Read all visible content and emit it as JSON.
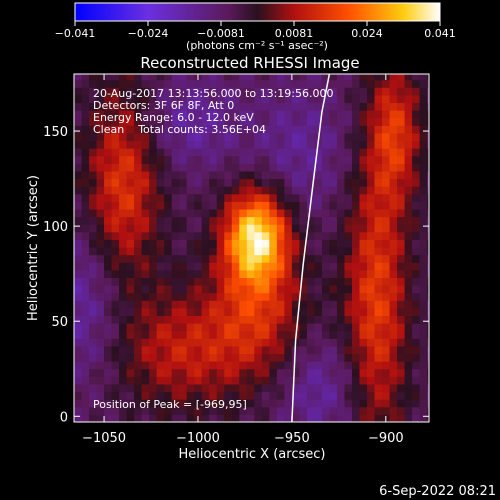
{
  "chart_data": {
    "type": "heatmap",
    "title": "Reconstructed RHESSI Image",
    "xlabel": "Heliocentric X (arcsec)",
    "ylabel": "Heliocentric Y (arcsec)",
    "x_ticks": [
      -1050,
      -1000,
      -950,
      -900
    ],
    "y_ticks": [
      0,
      50,
      100,
      150
    ],
    "xlim": [
      -1066,
      -877
    ],
    "ylim": [
      -3,
      180
    ],
    "colorbar": {
      "units": "(photons cm⁻² s⁻¹ asec⁻²)",
      "tick_labels": [
        "−0.041",
        "−0.024",
        "−0.0081",
        "0.0081",
        "0.024",
        "0.041"
      ],
      "range": [
        -0.041,
        0.041
      ]
    },
    "annotations": [
      "20-Aug-2017 13:13:56.000 to 13:19:56.000",
      "Detectors: 3F 6F 8F, Att 0",
      "Energy Range: 6.0 - 12.0 keV",
      "Clean    Total counts: 3.56E+04"
    ],
    "peak_label": "Position of Peak = [-969,95]",
    "peak": {
      "x": -969,
      "y": 95,
      "value": 0.041
    },
    "sources": [
      {
        "x": -969,
        "y": 95,
        "sx": 12,
        "sy": 17,
        "amp": 0.041
      },
      {
        "x": -968,
        "y": 55,
        "sx": 18,
        "sy": 26,
        "amp": 0.018
      },
      {
        "x": -1040,
        "y": 120,
        "sx": 14,
        "sy": 38,
        "amp": 0.021
      },
      {
        "x": -1010,
        "y": 35,
        "sx": 25,
        "sy": 22,
        "amp": 0.016
      },
      {
        "x": -905,
        "y": 60,
        "sx": 12,
        "sy": 55,
        "amp": 0.022
      },
      {
        "x": -895,
        "y": 150,
        "sx": 10,
        "sy": 25,
        "amp": 0.019
      },
      {
        "x": -1005,
        "y": 155,
        "sx": 18,
        "sy": 16,
        "amp": -0.01
      },
      {
        "x": -1060,
        "y": 60,
        "sx": 18,
        "sy": 30,
        "amp": -0.011
      },
      {
        "x": -935,
        "y": 15,
        "sx": 18,
        "sy": 20,
        "amp": -0.01
      },
      {
        "x": -945,
        "y": 140,
        "sx": 20,
        "sy": 25,
        "amp": -0.008
      }
    ],
    "limb_curve": [
      [
        -950,
        -3
      ],
      [
        -948,
        40
      ],
      [
        -944,
        80
      ],
      [
        -939,
        120
      ],
      [
        -934,
        160
      ],
      [
        -930,
        180
      ]
    ]
  },
  "footer_date": "6-Sep-2022 08:21"
}
